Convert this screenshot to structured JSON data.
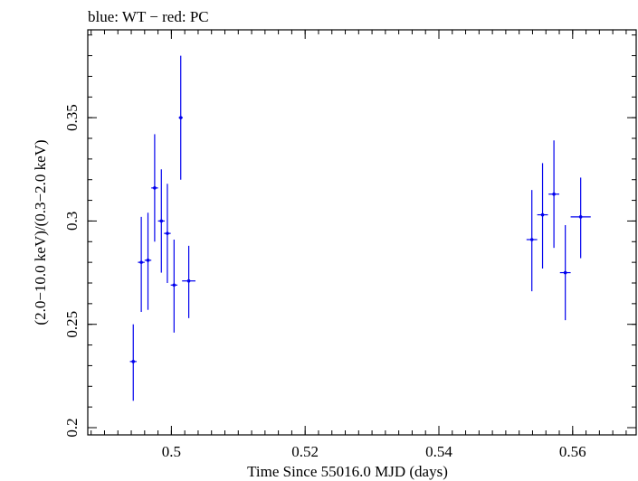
{
  "chart_data": {
    "type": "scatter",
    "title": "blue: WT − red: PC",
    "xlabel": "Time Since 55016.0 MJD (days)",
    "ylabel": "(2.0−10.0 keV)/(0.3−2.0 keV)",
    "xlim": [
      0.4875,
      0.5695
    ],
    "ylim": [
      0.1965,
      0.3925
    ],
    "x_ticks": [
      {
        "value": 0.5,
        "label": "0.5"
      },
      {
        "value": 0.52,
        "label": "0.52"
      },
      {
        "value": 0.54,
        "label": "0.54"
      },
      {
        "value": 0.56,
        "label": "0.56"
      }
    ],
    "x_minor_step": 0.002,
    "y_ticks": [
      {
        "value": 0.2,
        "label": "0.2"
      },
      {
        "value": 0.25,
        "label": "0.25"
      },
      {
        "value": 0.3,
        "label": "0.3"
      },
      {
        "value": 0.35,
        "label": "0.35"
      }
    ],
    "y_minor_step": 0.01,
    "grid": false,
    "series": [
      {
        "name": "WT",
        "color": "#0000ee",
        "points": [
          {
            "x": 0.4943,
            "y": 0.232,
            "xerr": 0.0005,
            "ylo": 0.213,
            "yhi": 0.25
          },
          {
            "x": 0.4955,
            "y": 0.28,
            "xerr": 0.0005,
            "ylo": 0.256,
            "yhi": 0.302
          },
          {
            "x": 0.4965,
            "y": 0.281,
            "xerr": 0.0005,
            "ylo": 0.257,
            "yhi": 0.304
          },
          {
            "x": 0.4975,
            "y": 0.316,
            "xerr": 0.0005,
            "ylo": 0.29,
            "yhi": 0.342
          },
          {
            "x": 0.4985,
            "y": 0.3,
            "xerr": 0.0005,
            "ylo": 0.275,
            "yhi": 0.325
          },
          {
            "x": 0.4994,
            "y": 0.294,
            "xerr": 0.0005,
            "ylo": 0.27,
            "yhi": 0.318
          },
          {
            "x": 0.5004,
            "y": 0.269,
            "xerr": 0.0005,
            "ylo": 0.246,
            "yhi": 0.291
          },
          {
            "x": 0.5014,
            "y": 0.35,
            "xerr": 0.0003,
            "ylo": 0.32,
            "yhi": 0.38
          },
          {
            "x": 0.5026,
            "y": 0.271,
            "xerr": 0.001,
            "ylo": 0.253,
            "yhi": 0.288
          },
          {
            "x": 0.5539,
            "y": 0.291,
            "xerr": 0.0008,
            "ylo": 0.266,
            "yhi": 0.315
          },
          {
            "x": 0.5555,
            "y": 0.303,
            "xerr": 0.0008,
            "ylo": 0.277,
            "yhi": 0.328
          },
          {
            "x": 0.5572,
            "y": 0.313,
            "xerr": 0.0008,
            "ylo": 0.287,
            "yhi": 0.339
          },
          {
            "x": 0.5589,
            "y": 0.275,
            "xerr": 0.0008,
            "ylo": 0.252,
            "yhi": 0.298
          },
          {
            "x": 0.5612,
            "y": 0.302,
            "xerr": 0.0015,
            "ylo": 0.282,
            "yhi": 0.321
          }
        ]
      }
    ]
  }
}
